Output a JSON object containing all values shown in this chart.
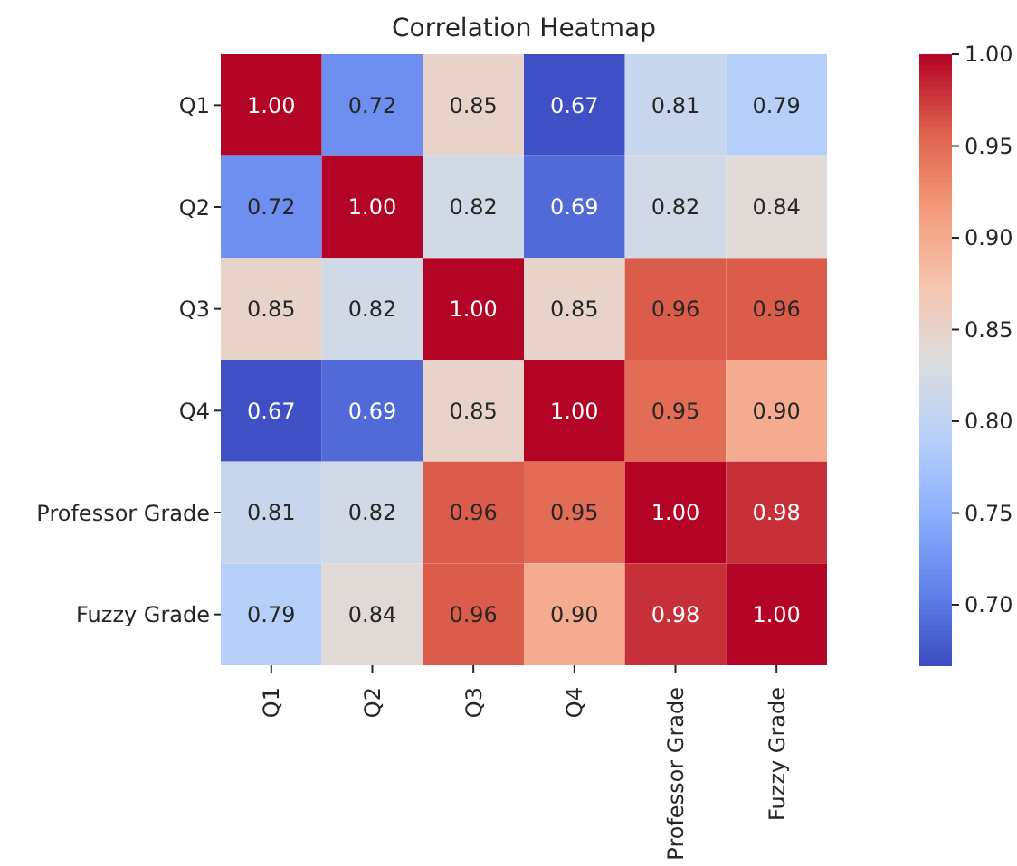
{
  "chart_data": {
    "type": "heatmap",
    "title": "Correlation Heatmap",
    "categories": [
      "Q1",
      "Q2",
      "Q3",
      "Q4",
      "Professor Grade",
      "Fuzzy Grade"
    ],
    "y_categories": [
      "Q1",
      "Q2",
      "Q3",
      "Q4",
      "Professor Grade",
      "Fuzzy Grade"
    ],
    "cells": [
      [
        1.0,
        0.72,
        0.85,
        0.67,
        0.81,
        0.79
      ],
      [
        0.72,
        1.0,
        0.82,
        0.69,
        0.82,
        0.84
      ],
      [
        0.85,
        0.82,
        1.0,
        0.85,
        0.96,
        0.96
      ],
      [
        0.67,
        0.69,
        0.85,
        1.0,
        0.95,
        0.9
      ],
      [
        0.81,
        0.82,
        0.96,
        0.95,
        1.0,
        0.98
      ],
      [
        0.79,
        0.84,
        0.96,
        0.9,
        0.98,
        1.0
      ]
    ],
    "cell_labels": [
      [
        "1.00",
        "0.72",
        "0.85",
        "0.67",
        "0.81",
        "0.79"
      ],
      [
        "0.72",
        "1.00",
        "0.82",
        "0.69",
        "0.82",
        "0.84"
      ],
      [
        "0.85",
        "0.82",
        "1.00",
        "0.85",
        "0.96",
        "0.96"
      ],
      [
        "0.67",
        "0.69",
        "0.85",
        "1.00",
        "0.95",
        "0.90"
      ],
      [
        "0.81",
        "0.82",
        "0.96",
        "0.95",
        "1.00",
        "0.98"
      ],
      [
        "0.79",
        "0.84",
        "0.96",
        "0.90",
        "0.98",
        "1.00"
      ]
    ],
    "clim": [
      0.667,
      1.0
    ],
    "cticks": [
      {
        "value": 0.7,
        "label": "0.70"
      },
      0.75,
      {
        "value": 0.8,
        "label": "0.80"
      },
      0.85,
      {
        "value": 0.9,
        "label": "0.90"
      },
      0.95,
      {
        "value": 1.0,
        "label": "1.00"
      }
    ]
  }
}
